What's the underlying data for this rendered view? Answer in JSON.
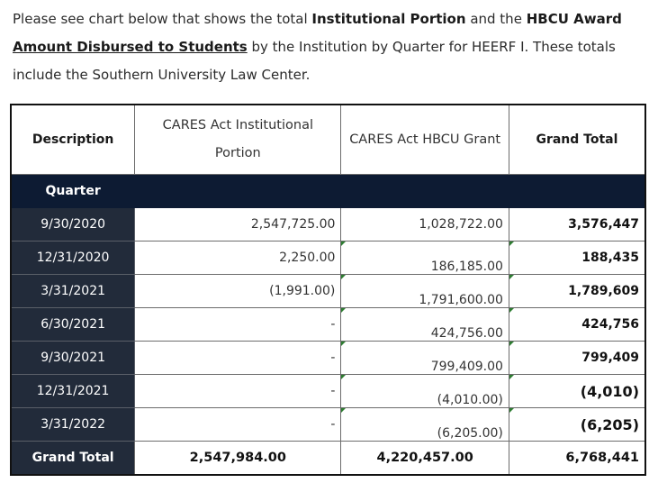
{
  "intro": {
    "t1": "Please see chart below that shows the total ",
    "b1": "Institutional Portion",
    "t2": " and the ",
    "b2": "HBCU Award",
    "t3": " ",
    "b3": "Amount Disbursed to Students",
    "t4": " by the Institution by Quarter for HEERF I.  These totals include the Southern University Law Center."
  },
  "table": {
    "headers": {
      "description": "Description",
      "institutional": "CARES Act Institutional Portion",
      "hbcu": "CARES Act HBCU Grant",
      "grand_total": "Grand Total"
    },
    "quarter_label": "Quarter",
    "rows": [
      {
        "date": "9/30/2020",
        "institutional": "2,547,725.00",
        "hbcu": "1,028,722.00",
        "total": "3,576,447"
      },
      {
        "date": "12/31/2020",
        "institutional": "2,250.00",
        "hbcu": "186,185.00",
        "total": "188,435"
      },
      {
        "date": "3/31/2021",
        "institutional": "(1,991.00)",
        "hbcu": "1,791,600.00",
        "total": "1,789,609"
      },
      {
        "date": "6/30/2021",
        "institutional": "-",
        "hbcu": "424,756.00",
        "total": "424,756"
      },
      {
        "date": "9/30/2021",
        "institutional": "-",
        "hbcu": "799,409.00",
        "total": "799,409"
      },
      {
        "date": "12/31/2021",
        "institutional": "-",
        "hbcu": "(4,010.00)",
        "total": "(4,010)"
      },
      {
        "date": "3/31/2022",
        "institutional": "-",
        "hbcu": "(6,205.00)",
        "total": "(6,205)"
      }
    ],
    "grand_total_row": {
      "label": "Grand Total",
      "institutional": "2,547,984.00",
      "hbcu": "4,220,457.00",
      "total": "6,768,441"
    }
  }
}
